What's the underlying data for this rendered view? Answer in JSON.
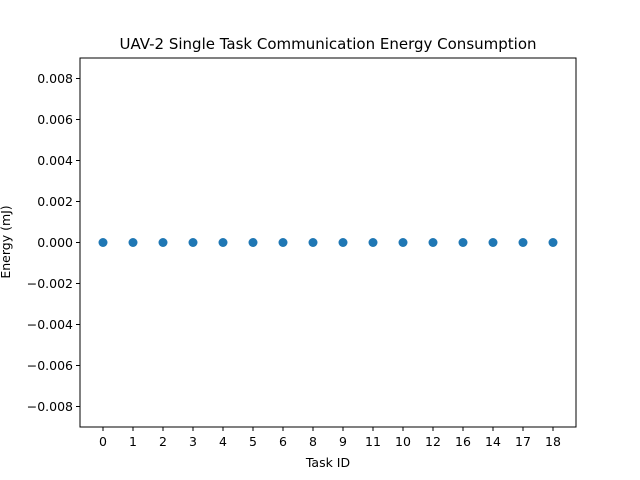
{
  "chart_data": {
    "type": "scatter",
    "title": "UAV-2 Single Task Communication Energy Consumption",
    "xlabel": "Task ID",
    "ylabel": "Energy (mJ)",
    "categories": [
      "0",
      "1",
      "2",
      "3",
      "4",
      "5",
      "6",
      "8",
      "9",
      "11",
      "10",
      "12",
      "16",
      "14",
      "17",
      "18"
    ],
    "values": [
      0,
      0,
      0,
      0,
      0,
      0,
      0,
      0,
      0,
      0,
      0,
      0,
      0,
      0,
      0,
      0
    ],
    "ylim": [
      -0.009,
      0.009
    ],
    "yticks": [
      "0.008",
      "0.006",
      "0.004",
      "0.002",
      "0.000",
      "−0.002",
      "−0.004",
      "−0.006",
      "−0.008"
    ],
    "ytick_values": [
      0.008,
      0.006,
      0.004,
      0.002,
      0,
      -0.002,
      -0.004,
      -0.006,
      -0.008
    ],
    "grid": false,
    "marker_color": "#1f77b4"
  }
}
